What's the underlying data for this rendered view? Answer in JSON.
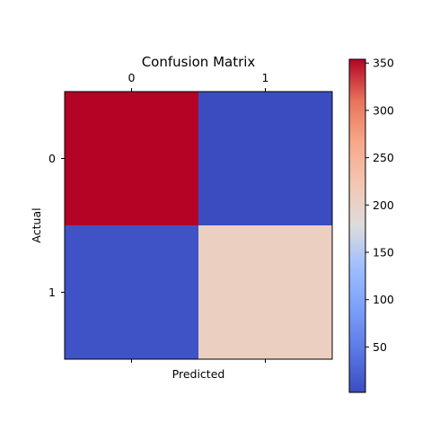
{
  "chart_data": {
    "type": "heatmap",
    "title": "Confusion Matrix",
    "xlabel": "Predicted",
    "ylabel": "Actual",
    "x_categories": [
      "0",
      "1"
    ],
    "y_categories": [
      "0",
      "1"
    ],
    "values": [
      [
        354,
        2
      ],
      [
        9,
        206
      ]
    ],
    "colormap": "coolwarm",
    "colorbar": {
      "vmin": 2,
      "vmax": 354,
      "ticks": [
        50,
        100,
        150,
        200,
        250,
        300,
        350
      ]
    },
    "x_tick_position": "top",
    "grid": false
  }
}
